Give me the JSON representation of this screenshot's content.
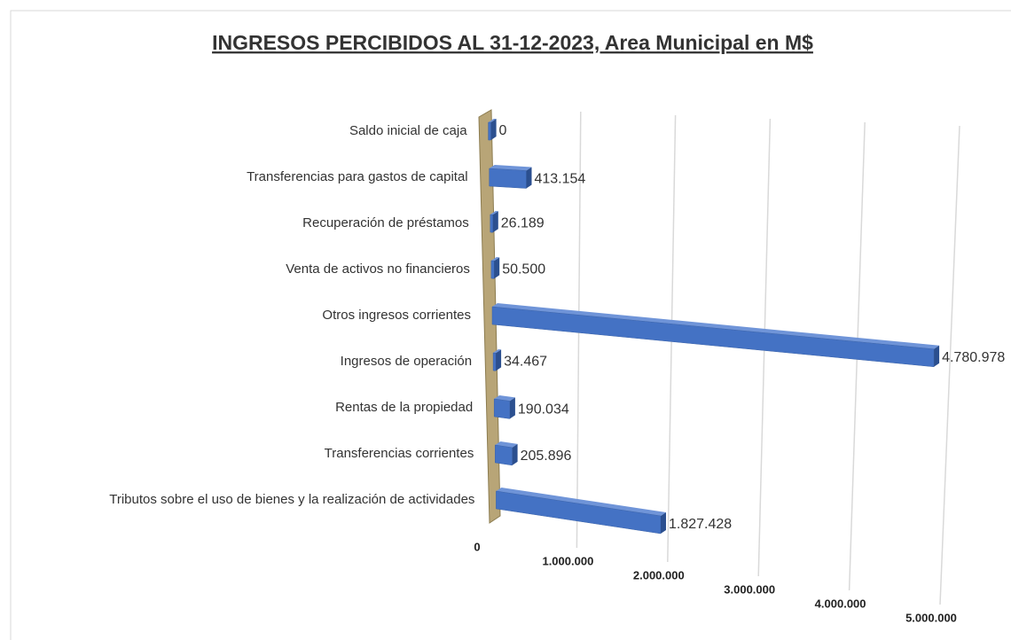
{
  "chart_data": {
    "type": "bar",
    "orientation": "horizontal",
    "title": "INGRESOS PERCIBIDOS AL 31-12-2023, Area Municipal en M$",
    "categories": [
      "Saldo inicial de caja",
      "Transferencias para gastos de capital",
      "Recuperación de préstamos",
      "Venta de activos no financieros",
      "Otros ingresos corrientes",
      "Ingresos de operación",
      "Rentas de la propiedad",
      "Transferencias corrientes",
      "Tributos sobre el uso de bienes y la realización de actividades"
    ],
    "values": [
      0,
      413154,
      26189,
      50500,
      4780978,
      34467,
      190034,
      205896,
      1827428
    ],
    "value_labels": [
      "0",
      "413.154",
      "26.189",
      "50.500",
      "4.780.978",
      "34.467",
      "190.034",
      "205.896",
      "1.827.428"
    ],
    "color": "#4472c4",
    "xlim": [
      0,
      5000000
    ],
    "xticks": [
      0,
      {
        "value": 1000000,
        "label": "1.000.000"
      },
      {
        "value": 2000000,
        "label": "2.000.000"
      },
      {
        "value": 3000000,
        "label": "3.000.000"
      },
      {
        "value": 4000000,
        "label": "4.000.000"
      },
      {
        "value": 5000000,
        "label": "5.000.000"
      }
    ],
    "grid": true
  }
}
